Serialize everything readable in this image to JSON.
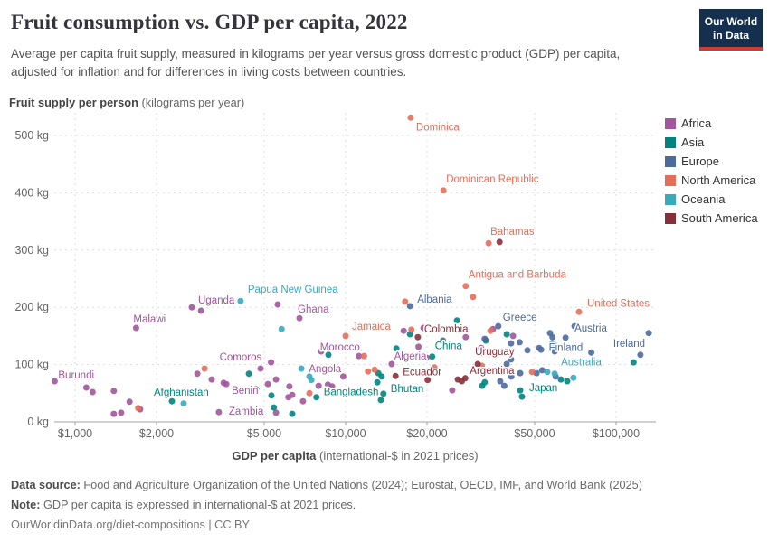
{
  "header": {
    "title": "Fruit consumption vs. GDP per capita, 2022",
    "subtitle": "Average per capita fruit supply, measured in kilograms per year versus gross domestic product (GDP) per capita, adjusted for inflation and for differences in living costs between countries.",
    "logo_line1": "Our World",
    "logo_line2": "in Data"
  },
  "y_axis_title": {
    "bold": "Fruit supply per person",
    "normal": " (kilograms per year)"
  },
  "x_axis_title": {
    "bold": "GDP per capita",
    "normal": " (international-$ in 2021 prices)"
  },
  "legend": {
    "items": [
      {
        "label": "Africa",
        "color": "#a2559c"
      },
      {
        "label": "Asia",
        "color": "#00847e"
      },
      {
        "label": "Europe",
        "color": "#4c6a9c"
      },
      {
        "label": "North America",
        "color": "#e56e5a"
      },
      {
        "label": "Oceania",
        "color": "#38aaba"
      },
      {
        "label": "South America",
        "color": "#883039"
      }
    ]
  },
  "footer": {
    "datasource_label": "Data source:",
    "datasource_text": " Food and Agriculture Organization of the United Nations (2024); Eurostat, OECD, IMF, and World Bank (2025)",
    "note_label": "Note:",
    "note_text": " GDP per capita is expressed in international-$ at 2021 prices.",
    "link": "OurWorldinData.org/diet-compositions | CC BY"
  },
  "chart_data": {
    "type": "scatter",
    "title": "Fruit consumption vs. GDP per capita, 2022",
    "x_scale": "log",
    "xlabel": "GDP per capita (international-$ in 2021 prices)",
    "ylabel": "Fruit supply per person (kilograms per year)",
    "xlim": [
      800,
      160000
    ],
    "ylim": [
      0,
      560
    ],
    "grid": true,
    "legend_position": "right",
    "x_ticks": [
      1000,
      2000,
      5000,
      10000,
      20000,
      50000,
      100000
    ],
    "x_tick_labels": [
      "$1,000",
      "$2,000",
      "$5,000",
      "$10,000",
      "$20,000",
      "$50,000",
      "$100,000"
    ],
    "y_ticks": [
      0,
      100,
      200,
      300,
      400,
      500
    ],
    "y_tick_labels": [
      "0 kg",
      "100 kg",
      "200 kg",
      "300 kg",
      "400 kg",
      "500 kg"
    ],
    "series": [
      {
        "name": "Africa",
        "color": "#a2559c",
        "points": [
          {
            "gdp": 2700,
            "kg": 200,
            "label": "Uganda",
            "dx": 7,
            "dy": -4
          },
          {
            "gdp": 6750,
            "kg": 181,
            "label": "Ghana",
            "dx": -2,
            "dy": -6
          },
          {
            "gdp": 1680,
            "kg": 164,
            "label": "Malawi",
            "dx": -3,
            "dy": -6
          },
          {
            "gdp": 5300,
            "kg": 104,
            "label": "Comoros",
            "dx": -57,
            "dy": -2
          },
          {
            "gdp": 840,
            "kg": 71,
            "label": "Burundi",
            "dx": 4,
            "dy": -3
          },
          {
            "gdp": 9800,
            "kg": 79,
            "label": "Angola",
            "dx": -38,
            "dy": -5
          },
          {
            "gdp": 3620,
            "kg": 66,
            "label": "Benin",
            "dx": 6,
            "dy": 11
          },
          {
            "gdp": 3400,
            "kg": 17,
            "label": "Zambia",
            "dx": 11,
            "dy": 3
          },
          {
            "gdp": 11200,
            "kg": 115,
            "label": "Morocco",
            "dx": -43,
            "dy": -6
          },
          {
            "gdp": 18600,
            "kg": 131,
            "label": "Algeria",
            "dx": -27,
            "dy": 14
          },
          [
            1100,
            60
          ],
          [
            1160,
            52
          ],
          [
            1390,
            54
          ],
          [
            1390,
            14
          ],
          [
            1480,
            16
          ],
          [
            1590,
            35
          ],
          [
            1740,
            22
          ],
          [
            2830,
            84
          ],
          [
            2920,
            194
          ],
          [
            3200,
            74
          ],
          [
            3540,
            68
          ],
          [
            4850,
            93
          ],
          [
            5160,
            66
          ],
          [
            5530,
            74
          ],
          [
            5530,
            16
          ],
          [
            5610,
            205
          ],
          [
            6140,
            43
          ],
          [
            6200,
            62
          ],
          [
            6350,
            47
          ],
          [
            6960,
            36
          ],
          [
            7950,
            63
          ],
          [
            8120,
            123
          ],
          [
            8600,
            65
          ],
          [
            8910,
            62
          ],
          [
            14800,
            101
          ],
          [
            16400,
            159
          ],
          [
            19400,
            164
          ],
          [
            19900,
            112
          ],
          [
            24800,
            55
          ],
          [
            27800,
            148
          ],
          [
            31700,
            129
          ],
          [
            35100,
            162
          ],
          [
            41600,
            150
          ]
        ]
      },
      {
        "name": "Asia",
        "color": "#00847e",
        "points": [
          {
            "gdp": 2280,
            "kg": 36,
            "label": "Afghanistan",
            "dx": -20,
            "dy": -6
          },
          {
            "gdp": 7800,
            "kg": 43,
            "label": "Bangladesh",
            "dx": 8,
            "dy": -2
          },
          {
            "gdp": 13800,
            "kg": 49,
            "label": "Bhutan",
            "dx": 8,
            "dy": -2
          },
          {
            "gdp": 20900,
            "kg": 114,
            "label": "China",
            "dx": 3,
            "dy": -8
          },
          {
            "gdp": 44900,
            "kg": 44,
            "label": "Japan",
            "dx": 8,
            "dy": -6
          },
          [
            4390,
            84
          ],
          [
            4670,
            57
          ],
          [
            5320,
            46
          ],
          [
            5430,
            25
          ],
          [
            6350,
            14
          ],
          [
            8640,
            117
          ],
          [
            13100,
            69
          ],
          [
            13200,
            85
          ],
          [
            13600,
            79
          ],
          [
            13500,
            38
          ],
          [
            15400,
            128
          ],
          [
            17300,
            153
          ],
          [
            25800,
            177
          ],
          [
            32000,
            63
          ],
          [
            32200,
            120
          ],
          [
            32700,
            69
          ],
          [
            33000,
            142
          ],
          [
            39400,
            153
          ],
          [
            44200,
            55
          ],
          [
            57900,
            137
          ],
          [
            62500,
            74
          ],
          [
            66000,
            71
          ],
          [
            116000,
            104
          ]
        ]
      },
      {
        "name": "Europe",
        "color": "#4c6a9c",
        "points": [
          {
            "gdp": 17300,
            "kg": 202,
            "label": "Albania",
            "dx": 8,
            "dy": -4
          },
          {
            "gdp": 36700,
            "kg": 167,
            "label": "Greece",
            "dx": 5,
            "dy": -6
          },
          {
            "gdp": 65000,
            "kg": 147,
            "label": "Austria",
            "dx": 10,
            "dy": -7
          },
          {
            "gdp": 81000,
            "kg": 121,
            "label": "Finland",
            "dx": -47,
            "dy": -2
          },
          {
            "gdp": 123000,
            "kg": 117,
            "label": "Ireland",
            "dx": -30,
            "dy": -9
          },
          [
            9840,
            50
          ],
          [
            22900,
            142
          ],
          [
            32700,
            145
          ],
          [
            37300,
            71
          ],
          [
            38600,
            63
          ],
          [
            39400,
            101
          ],
          [
            40900,
            109
          ],
          [
            40900,
            137
          ],
          [
            41000,
            79
          ],
          [
            44000,
            139
          ],
          [
            44200,
            85
          ],
          [
            47000,
            125
          ],
          [
            50800,
            85
          ],
          [
            51900,
            129
          ],
          [
            52800,
            126
          ],
          [
            53300,
            90
          ],
          [
            57000,
            155
          ],
          [
            58200,
            148
          ],
          [
            59300,
            123
          ],
          [
            59800,
            79
          ],
          [
            70200,
            167
          ],
          [
            132000,
            155
          ]
        ]
      },
      {
        "name": "North America",
        "color": "#e56e5a",
        "points": [
          {
            "gdp": 17400,
            "kg": 531,
            "label": "Dominica",
            "dx": 6,
            "dy": 14
          },
          {
            "gdp": 23000,
            "kg": 404,
            "label": "Dominican Republic",
            "dx": 3,
            "dy": -9
          },
          {
            "gdp": 33800,
            "kg": 312,
            "label": "Bahamas",
            "dx": 2,
            "dy": -9
          },
          {
            "gdp": 27800,
            "kg": 237,
            "label": "Antigua and Barbuda",
            "dx": 3,
            "dy": -9
          },
          {
            "gdp": 72900,
            "kg": 192,
            "label": "United States",
            "dx": 9,
            "dy": -6
          },
          {
            "gdp": 10000,
            "kg": 150,
            "label": "Jamaica",
            "dx": 7,
            "dy": -7
          },
          [
            1710,
            24
          ],
          [
            3010,
            93
          ],
          [
            7350,
            50
          ],
          [
            11700,
            115
          ],
          [
            12100,
            88
          ],
          [
            12800,
            91
          ],
          [
            16600,
            210
          ],
          [
            17500,
            161
          ],
          [
            21300,
            95
          ],
          [
            29600,
            218
          ],
          [
            31900,
            98
          ],
          [
            34300,
            159
          ],
          [
            48900,
            87
          ]
        ]
      },
      {
        "name": "Oceania",
        "color": "#38aaba",
        "points": [
          {
            "gdp": 4090,
            "kg": 211,
            "label": "Papua New Guinea",
            "dx": 8,
            "dy": -9
          },
          {
            "gdp": 59300,
            "kg": 84,
            "label": "Australia",
            "dx": 7,
            "dy": -9
          },
          [
            2520,
            32
          ],
          [
            5800,
            162
          ],
          [
            6860,
            93
          ],
          [
            7350,
            79
          ],
          [
            7470,
            73
          ],
          [
            55700,
            87
          ],
          [
            69600,
            77
          ]
        ]
      },
      {
        "name": "South America",
        "color": "#883039",
        "points": [
          {
            "gdp": 18500,
            "kg": 148,
            "label": "Colombia",
            "dx": 7,
            "dy": -5
          },
          {
            "gdp": 30800,
            "kg": 101,
            "label": "Uruguay",
            "dx": -3,
            "dy": -10
          },
          {
            "gdp": 27700,
            "kg": 76,
            "label": "Argentina",
            "dx": 5,
            "dy": -5
          },
          {
            "gdp": 15300,
            "kg": 80,
            "label": "Ecuador",
            "dx": 8,
            "dy": -1
          },
          [
            20100,
            73
          ],
          [
            26000,
            74
          ],
          [
            26900,
            71
          ],
          [
            37100,
            314
          ]
        ]
      }
    ]
  }
}
